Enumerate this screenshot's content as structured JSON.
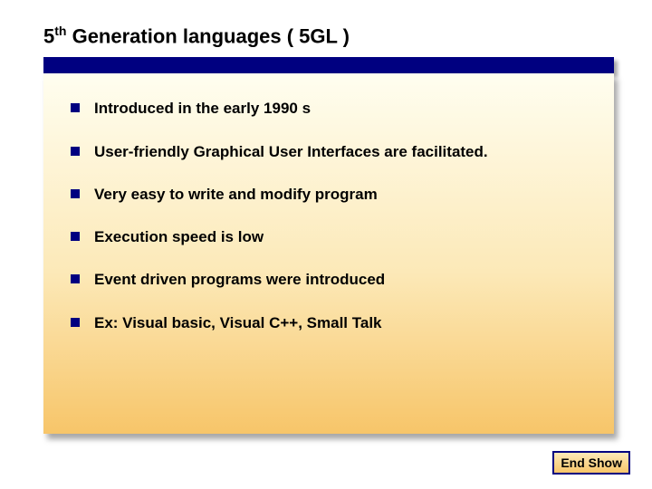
{
  "slide": {
    "title_prefix": "5",
    "title_sup": "th",
    "title_rest": " Generation languages ( 5GL )",
    "bullets": [
      "Introduced in the early 1990 s",
      "User-friendly Graphical User Interfaces are facilitated.",
      "Very easy to write and modify program",
      "Execution speed is low",
      "Event driven programs were introduced",
      "Ex: Visual basic, Visual C++, Small Talk"
    ],
    "end_show_label": "End Show"
  },
  "style": {
    "title_fontsize": 22,
    "title_color": "#000000",
    "bar_color": "#000080",
    "bullet_color": "#000080",
    "bullet_size": 10,
    "bullet_text_fontsize": 17,
    "bullet_text_color": "#000000",
    "content_gradient_top": "#fffef0",
    "content_gradient_mid": "#fce9b8",
    "content_gradient_bottom": "#f7c569",
    "endshow_border_color": "#000080",
    "endshow_fontsize": 14,
    "background_color": "#ffffff",
    "slide_width": 720,
    "slide_height": 540
  }
}
